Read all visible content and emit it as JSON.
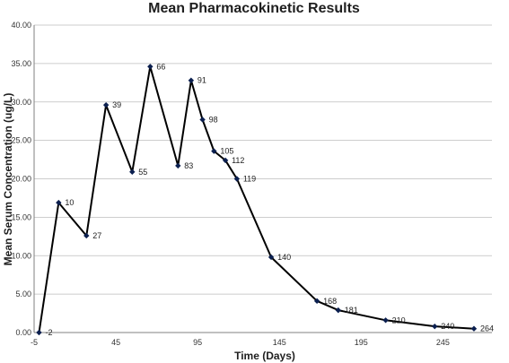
{
  "chart_data": {
    "type": "scatter",
    "title": "Mean Pharmacokinetic Results",
    "xlabel": "Time (Days)",
    "ylabel": "Mean Serum Concentration (ug/L)",
    "xlim": [
      -5,
      275
    ],
    "ylim": [
      0,
      40
    ],
    "x_ticks": [
      -5,
      45,
      95,
      145,
      195,
      245
    ],
    "y_ticks": [
      "0.00",
      "5.00",
      "10.00",
      "15.00",
      "20.00",
      "25.00",
      "30.00",
      "35.00",
      "40.00"
    ],
    "grid": "horizontal",
    "line_color": "#000000",
    "marker_color": "#0b1f4f",
    "series": [
      {
        "x": [
          -2,
          10,
          27,
          39,
          55,
          66,
          83,
          91,
          98,
          105,
          112,
          119,
          140,
          168,
          181,
          210,
          240,
          264
        ],
        "y": [
          0.0,
          16.9,
          12.6,
          29.6,
          20.9,
          34.6,
          21.7,
          32.8,
          27.7,
          23.6,
          22.4,
          20.0,
          9.8,
          4.1,
          2.9,
          1.6,
          0.8,
          0.5
        ],
        "labels": [
          "-2",
          "10",
          "27",
          "39",
          "55",
          "66",
          "83",
          "91",
          "98",
          "105",
          "112",
          "119",
          "140",
          "168",
          "181",
          "210",
          "240",
          "264"
        ]
      }
    ]
  }
}
